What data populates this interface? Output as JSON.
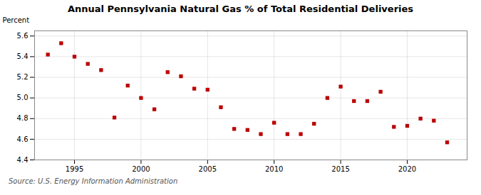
{
  "chart_data": {
    "type": "scatter",
    "title": "Annual Pennsylvania Natural Gas % of Total Residential Deliveries",
    "ylabel": "Percent",
    "source": "Source: U.S. Energy Information Administration",
    "x": [
      1993,
      1994,
      1995,
      1996,
      1997,
      1998,
      1999,
      2000,
      2001,
      2002,
      2003,
      2004,
      2005,
      2006,
      2007,
      2008,
      2009,
      2010,
      2011,
      2012,
      2013,
      2014,
      2015,
      2016,
      2017,
      2018,
      2019,
      2020,
      2021,
      2022,
      2023
    ],
    "values": [
      5.42,
      5.53,
      5.4,
      5.33,
      5.27,
      4.81,
      5.12,
      5.0,
      4.89,
      5.25,
      5.21,
      5.09,
      5.08,
      4.91,
      4.7,
      4.69,
      4.65,
      4.76,
      4.65,
      4.65,
      4.75,
      5.0,
      5.11,
      4.97,
      4.97,
      5.06,
      4.72,
      4.73,
      4.8,
      4.78,
      4.57
    ],
    "color": "#bb0000",
    "marker": "square",
    "ylim": [
      4.4,
      5.65
    ],
    "yticks": [
      4.4,
      4.6,
      4.8,
      {
        "value": 5.0,
        "label": "5.0"
      },
      5.2,
      5.4,
      5.6
    ],
    "xlim": [
      1992.0,
      2024.5
    ],
    "xticks": [
      1995,
      2000,
      2005,
      2010,
      2015,
      2020
    ],
    "grid": true
  }
}
